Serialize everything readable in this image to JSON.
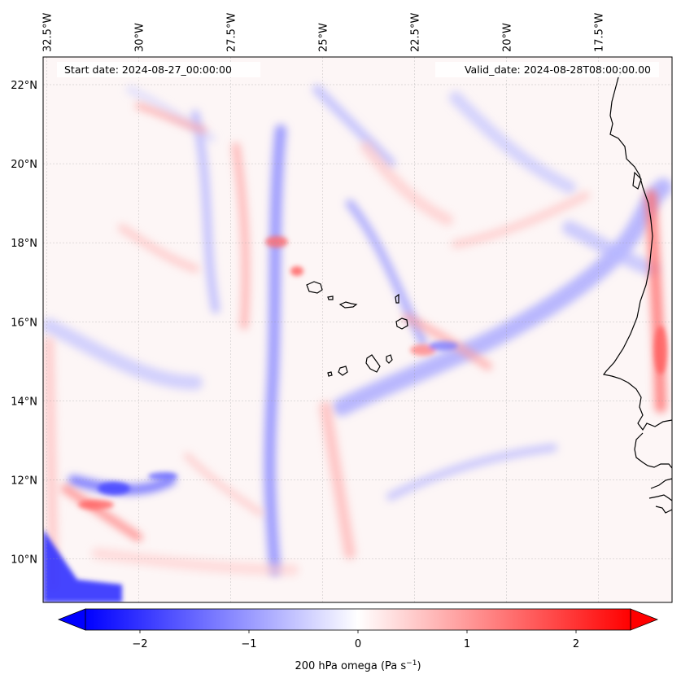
{
  "map": {
    "start_date": "Start date: 2024-08-27_00:00:00",
    "valid_date": "Valid_date: 2024-08-28T08:00:00.00",
    "lon_labels": [
      "32.5°W",
      "30°W",
      "27.5°W",
      "25°W",
      "22.5°W",
      "20°W",
      "17.5°W"
    ],
    "lat_labels": [
      "22°N",
      "20°N",
      "18°N",
      "16°N",
      "14°N",
      "12°N",
      "10°N"
    ],
    "lon_values": [
      -32.5,
      -30,
      -27.5,
      -25,
      -22.5,
      -20,
      -17.5
    ],
    "lat_values": [
      22,
      20,
      18,
      16,
      14,
      12,
      10
    ],
    "extent": {
      "lon_min": -32.6,
      "lon_max": -15.5,
      "lat_min": 8.9,
      "lat_max": 22.7
    },
    "colors": {
      "coast": "#000000",
      "neg": "#0000ff",
      "pos": "#ff0000",
      "mid": "#ffffff"
    }
  },
  "colorbar": {
    "ticks": [
      "−2",
      "−1",
      "0",
      "1",
      "2"
    ],
    "tick_values": [
      -2,
      -1,
      0,
      1,
      2
    ],
    "range": [
      -2.5,
      2.5
    ],
    "label_main": "200 hPa omega (Pa s",
    "label_sup": "−1",
    "label_end": ")",
    "cmap": "bwr"
  }
}
